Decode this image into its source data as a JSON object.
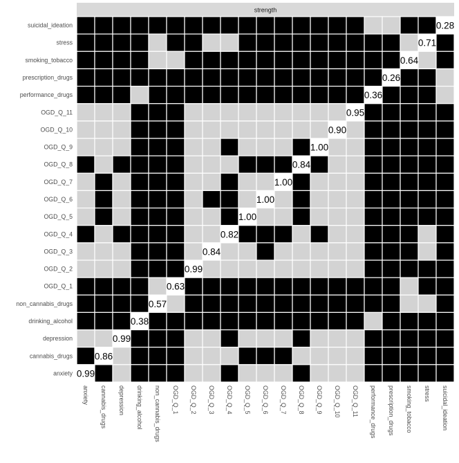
{
  "chart_data": {
    "type": "heatmap",
    "title": "",
    "strip_label": "strength",
    "xlabel": "",
    "ylabel": "",
    "x_categories": [
      "anxiety",
      "cannabis_drugs",
      "depression",
      "drinking_alcohol",
      "non_cannabis_drugs",
      "OGD_Q_1",
      "OGD_Q_2",
      "OGD_Q_3",
      "OGD_Q_4",
      "OGD_Q_5",
      "OGD_Q_6",
      "OGD_Q_7",
      "OGD_Q_8",
      "OGD_Q_9",
      "OGD_Q_10",
      "OGD_Q_11",
      "performance_drugs",
      "prescription_drugs",
      "smoking_tobacco",
      "stress",
      "suicidal_ideation"
    ],
    "y_categories_top_to_bottom": [
      "suicidal_ideation",
      "stress",
      "smoking_tobacco",
      "prescription_drugs",
      "performance_drugs",
      "OGD_Q_11",
      "OGD_Q_10",
      "OGD_Q_9",
      "OGD_Q_8",
      "OGD_Q_7",
      "OGD_Q_6",
      "OGD_Q_5",
      "OGD_Q_4",
      "OGD_Q_3",
      "OGD_Q_2",
      "OGD_Q_1",
      "non_cannabis_drugs",
      "drinking_alcohol",
      "depression",
      "cannabis_drugs",
      "anxiety"
    ],
    "cell_colors": {
      "B": "#000000",
      "G": "#d3d3d3",
      "D": "#ffffff"
    },
    "cells_top_to_bottom": [
      "BBBBBBBBBBBBBBBBGGBBD",
      "BBBBGBBGGBBBBBBBBBGDB",
      "BBBBGGBBBBBBBBBBBBDGB",
      "BBBBBBBBBBBBBBBBBDBBG",
      "BBBGBBBBBBBBBBBBDBBBG",
      "GGGBBBGGGGGGGGGDBBBBB",
      "GGGBBBGGGGGGGGDGBBBBB",
      "GGGBBBGGBGGGBDGGBBBBB",
      "BGBBBBGGGBBBDBGGBBBBB",
      "GBGBBBGGBGGDBGGGBBBBB",
      "GBGBBBGBBGDGBGGGBBBBB",
      "GBGBBBGGBDGGBGGGBBBBB",
      "BGBBBBGGDBBBGBGGBBBGB",
      "GGGBBBGDGGBGGGGGBBBGB",
      "GGGBBBDGGGGGGGGGBBBBB",
      "BBBBGDBBBBBBBBBBBBGBB",
      "BBBBDGBBBBBBBBBBBBGGB",
      "BBBDBBBBBBBBBBBBGBBBB",
      "GGDBBBGGBGGGBGGGBBBBB",
      "BDGBBBGGGBBBGGGGBBBBB",
      "DBGBBBGGBGGGBGGGBBBBB"
    ],
    "diagonal_values": {
      "anxiety": "0.99",
      "cannabis_drugs": "0.86",
      "depression": "0.99",
      "drinking_alcohol": "0.38",
      "non_cannabis_drugs": "0.57",
      "OGD_Q_1": "0.63",
      "OGD_Q_2": "0.99",
      "OGD_Q_3": "0.84",
      "OGD_Q_4": "0.82",
      "OGD_Q_5": "1.00",
      "OGD_Q_6": "1.00",
      "OGD_Q_7": "1.00",
      "OGD_Q_8": "0.84",
      "OGD_Q_9": "1.00",
      "OGD_Q_10": "0.90",
      "OGD_Q_11": "0.95",
      "performance_drugs": "0.36",
      "prescription_drugs": "0.26",
      "smoking_tobacco": "0.64",
      "stress": "0.71",
      "suicidal_ideation": "0.28"
    },
    "grid": false,
    "legend": "none"
  }
}
